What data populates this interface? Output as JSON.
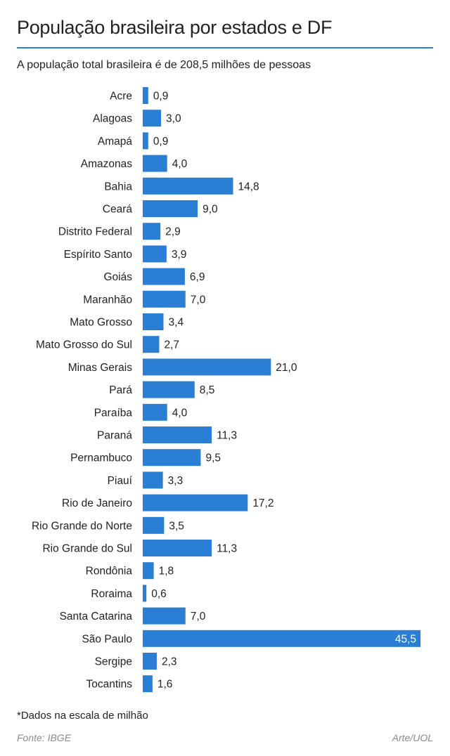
{
  "chart_data": {
    "type": "bar",
    "orientation": "horizontal",
    "title": "População brasileira por estados e DF",
    "subtitle": "A população total brasileira é de 208,5 milhões de pessoas",
    "categories": [
      "Acre",
      "Alagoas",
      "Amapá",
      "Amazonas",
      "Bahia",
      "Ceará",
      "Distrito Federal",
      "Espírito Santo",
      "Goiás",
      "Maranhão",
      "Mato Grosso",
      "Mato Grosso do Sul",
      "Minas Gerais",
      "Pará",
      "Paraíba",
      "Paraná",
      "Pernambuco",
      "Piauí",
      "Rio de Janeiro",
      "Rio Grande do Norte",
      "Rio Grande do Sul",
      "Rondônia",
      "Roraima",
      "Santa Catarina",
      "São Paulo",
      "Sergipe",
      "Tocantins"
    ],
    "values": [
      0.9,
      3.0,
      0.9,
      4.0,
      14.8,
      9.0,
      2.9,
      3.9,
      6.9,
      7.0,
      3.4,
      2.7,
      21.0,
      8.5,
      4.0,
      11.3,
      9.5,
      3.3,
      17.2,
      3.5,
      11.3,
      1.8,
      0.6,
      7.0,
      45.5,
      2.3,
      1.6
    ],
    "value_labels": [
      "0,9",
      "3,0",
      "0,9",
      "4,0",
      "14,8",
      "9,0",
      "2,9",
      "3,9",
      "6,9",
      "7,0",
      "3,4",
      "2,7",
      "21,0",
      "8,5",
      "4,0",
      "11,3",
      "9,5",
      "3,3",
      "17,2",
      "3,5",
      "11,3",
      "1,8",
      "0,6",
      "7,0",
      "45,5",
      "2,3",
      "1,6"
    ],
    "xlim": [
      0,
      45.5
    ],
    "grid": false,
    "bar_color": "#2a7fd4",
    "accent_color": "#2a7fd4"
  },
  "footnote": "*Dados na escala de milhão",
  "source": "Fonte: IBGE",
  "credit": "Arte/UOL"
}
